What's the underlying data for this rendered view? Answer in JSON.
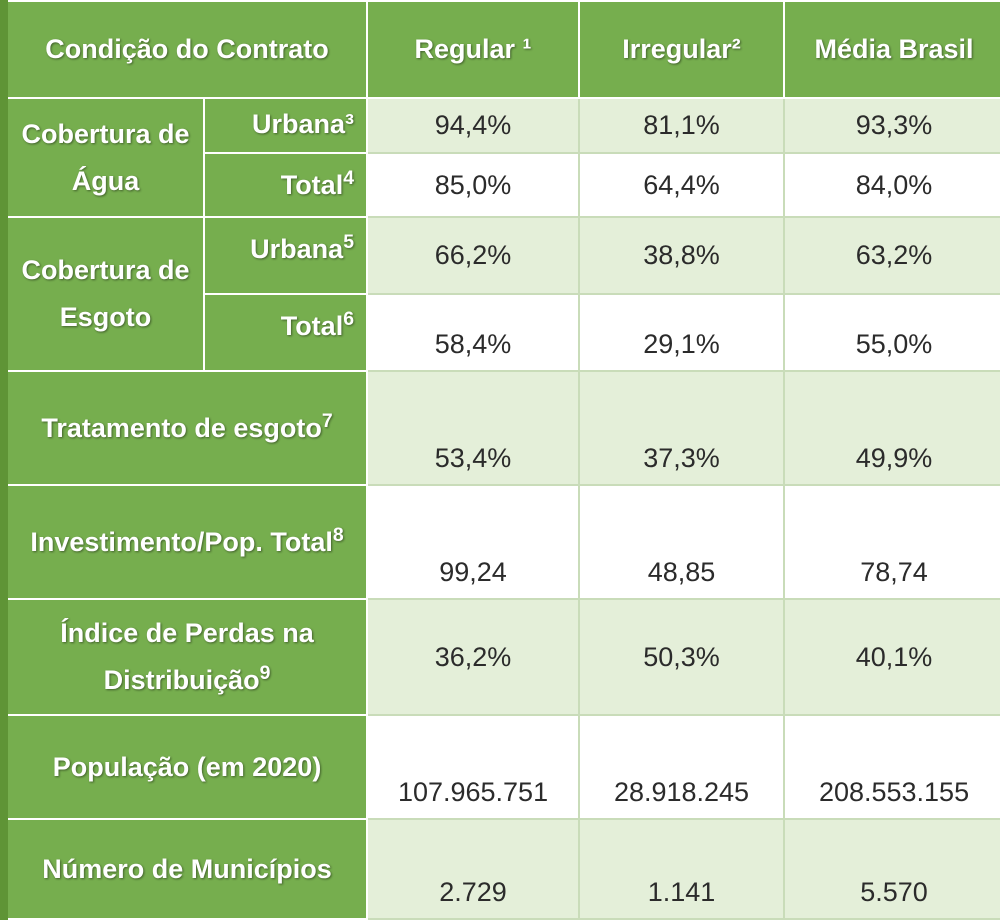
{
  "headers": {
    "condicao": "Condição do Contrato",
    "regular": "Regular ¹",
    "irregular": "Irregular²",
    "media": "Média Brasil"
  },
  "rows": {
    "agua_label": "Cobertura de Água",
    "agua_urbana_label": "Urbana³",
    "agua_urbana": [
      "94,4%",
      "81,1%",
      "93,3%"
    ],
    "agua_total_label": "Total",
    "agua_total_sup": "4",
    "agua_total": [
      "85,0%",
      "64,4%",
      "84,0%"
    ],
    "esgoto_label": "Cobertura de Esgoto",
    "esgoto_urbana_label": "Urbana",
    "esgoto_urbana_sup": "5",
    "esgoto_urbana": [
      "66,2%",
      "38,8%",
      "63,2%"
    ],
    "esgoto_total_label": "Total",
    "esgoto_total_sup": "6",
    "esgoto_total": [
      "58,4%",
      "29,1%",
      "55,0%"
    ],
    "tratamento_label": "Tratamento de esgoto",
    "tratamento_sup": "7",
    "tratamento": [
      "53,4%",
      "37,3%",
      "49,9%"
    ],
    "investimento_label": "Investimento/Pop. Total",
    "investimento_sup": "8",
    "investimento": [
      "99,24",
      "48,85",
      "78,74"
    ],
    "perdas_label": "Índice de Perdas na Distribuição",
    "perdas_sup": "9",
    "perdas": [
      "36,2%",
      "50,3%",
      "40,1%"
    ],
    "populacao_label": "População (em 2020)",
    "populacao": [
      "107.965.751",
      "28.918.245",
      "208.553.155"
    ],
    "municipios_label": "Número de Municípios",
    "municipios": [
      "2.729",
      "1.141",
      "5.570"
    ]
  }
}
